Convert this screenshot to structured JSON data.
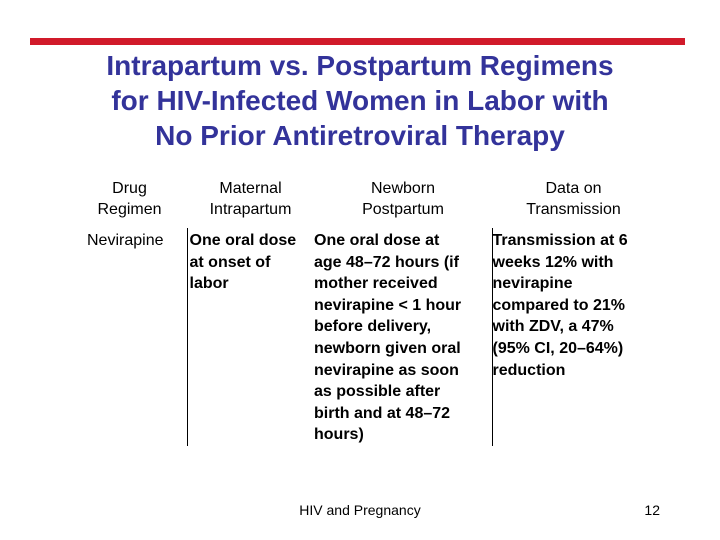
{
  "slide": {
    "title_lines": [
      "Intrapartum vs. Postpartum Regimens",
      "for HIV-Infected Women in Labor with",
      "No Prior Antiretroviral Therapy"
    ],
    "accent_color": "#d11a2a",
    "title_color": "#33339a"
  },
  "table": {
    "headers": {
      "drug": [
        "Drug",
        "Regimen"
      ],
      "maternal": [
        "Maternal",
        "Intrapartum"
      ],
      "newborn": [
        "Newborn",
        "Postpartum"
      ],
      "data": [
        "Data on",
        "Transmission"
      ]
    },
    "row": {
      "drug": [
        "Nevirapine"
      ],
      "maternal": [
        "One oral dose",
        "at onset of",
        "labor"
      ],
      "newborn": [
        "One oral dose at",
        "age 48–72 hours (if",
        "mother received",
        "nevirapine < 1 hour",
        "before delivery,",
        "newborn given oral",
        "nevirapine as soon",
        "as possible after",
        "birth and at 48–72",
        "hours)"
      ],
      "data": [
        "Transmission at 6",
        "weeks 12% with",
        "nevirapine",
        "compared to 21%",
        "with ZDV, a 47%",
        "(95% CI, 20–64%)",
        "reduction"
      ]
    }
  },
  "footer": {
    "center_text": "HIV and Pregnancy",
    "page_number": "12"
  }
}
